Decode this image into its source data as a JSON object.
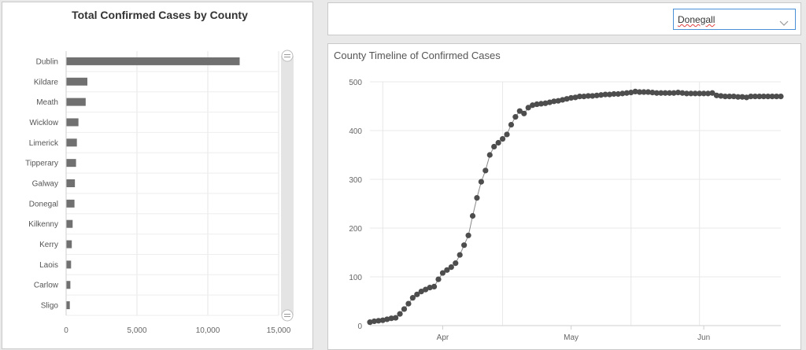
{
  "county_selector": {
    "selected": "Donegall",
    "icon": "chevron-down-icon"
  },
  "chart_data": [
    {
      "type": "bar",
      "orientation": "horizontal",
      "title": "Total Confirmed Cases by County",
      "categories": [
        "Dublin",
        "Kildare",
        "Meath",
        "Wicklow",
        "Limerick",
        "Tipperary",
        "Galway",
        "Donegal",
        "Kilkenny",
        "Kerry",
        "Laois",
        "Carlow",
        "Sligo"
      ],
      "values": [
        12250,
        1500,
        1380,
        870,
        760,
        700,
        620,
        590,
        460,
        400,
        350,
        300,
        260
      ],
      "xlim": [
        0,
        15000
      ],
      "xticks": [
        "0",
        "5,000",
        "10,000",
        "15,000"
      ],
      "grid": true,
      "scrollbar": true,
      "colors": {
        "bar": "#707070"
      }
    },
    {
      "type": "scatter",
      "connected": true,
      "title": "County Timeline of Confirmed Cases",
      "ylim": [
        0,
        500
      ],
      "yticks": [
        100,
        200,
        300,
        400,
        500
      ],
      "xtick_labels": [
        "Apr",
        "May",
        "Jun"
      ],
      "x_start": "2020-03-15",
      "y": [
        7,
        9,
        10,
        11,
        13,
        15,
        16,
        24,
        34,
        45,
        57,
        64,
        70,
        74,
        78,
        80,
        95,
        108,
        114,
        120,
        128,
        145,
        165,
        185,
        225,
        262,
        295,
        318,
        350,
        367,
        375,
        383,
        392,
        412,
        428,
        440,
        435,
        447,
        452,
        454,
        455,
        456,
        458,
        460,
        461,
        463,
        465,
        467,
        468,
        470,
        470,
        471,
        471,
        472,
        473,
        474,
        474,
        475,
        475,
        476,
        477,
        478,
        480,
        479,
        479,
        479,
        478,
        477,
        477,
        477,
        477,
        477,
        478,
        477,
        476,
        476,
        476,
        476,
        476,
        476,
        477,
        472,
        471,
        470,
        470,
        470,
        469,
        469,
        468,
        470,
        470,
        470,
        470,
        470,
        470,
        470,
        470
      ],
      "grid": true,
      "colors": {
        "marker": "#4d4d4d",
        "line": "#888888"
      }
    }
  ]
}
